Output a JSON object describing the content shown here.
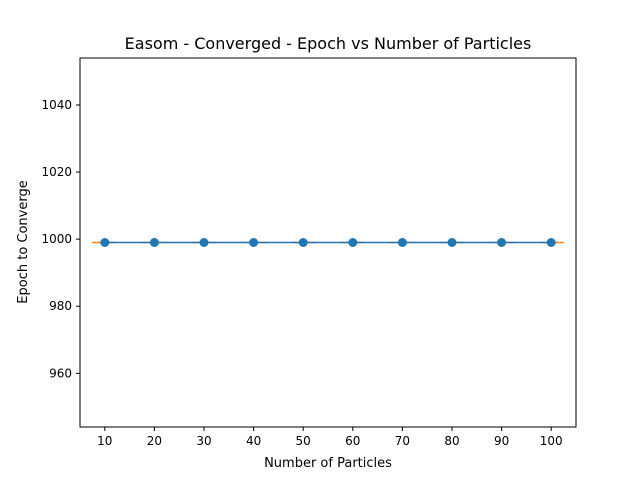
{
  "chart_data": {
    "type": "line",
    "title": "Easom - Converged - Epoch vs Number of Particles",
    "xlabel": "Number of Particles",
    "ylabel": "Epoch to Converge",
    "x": [
      10,
      20,
      30,
      40,
      50,
      60,
      70,
      80,
      90,
      100
    ],
    "x_ticks": [
      "10",
      "20",
      "30",
      "40",
      "50",
      "60",
      "70",
      "80",
      "90",
      "100"
    ],
    "y_ticks": [
      "960",
      "980",
      "1000",
      "1020",
      "1040"
    ],
    "xlim": [
      5,
      105
    ],
    "ylim": [
      944,
      1054
    ],
    "grid": false,
    "series": [
      {
        "values": [
          999,
          999,
          999,
          999,
          999,
          999,
          999,
          999,
          999,
          999
        ],
        "color": "#1f77b4",
        "markers": "circle"
      }
    ],
    "medians": {
      "values": [
        999,
        999,
        999,
        999,
        999,
        999,
        999,
        999,
        999,
        999
      ],
      "color": "#ff7f0e"
    }
  }
}
